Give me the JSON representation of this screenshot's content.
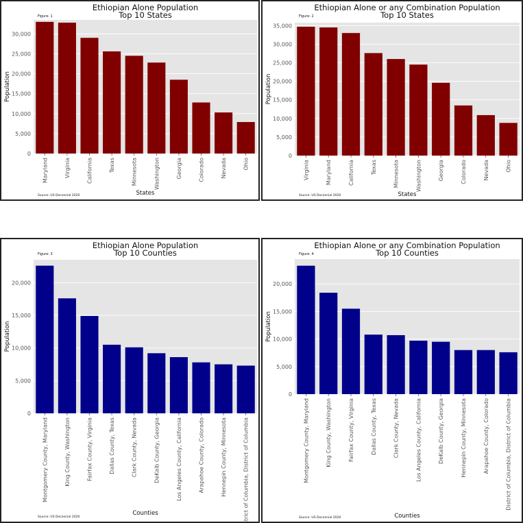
{
  "source_note": "Source: US Decennial 2020",
  "chart_data": [
    {
      "type": "bar",
      "figure_label": "Figure: 1",
      "title": "Ethiopian Alone Population",
      "subtitle": "Top 10 States",
      "xlabel": "States",
      "ylabel": "Population",
      "ylim": [
        0,
        33500
      ],
      "yticks": [
        0,
        5000,
        10000,
        15000,
        20000,
        25000,
        30000
      ],
      "ytick_labels": [
        "0",
        "5,000",
        "10,000",
        "15,000",
        "20,000",
        "25,000",
        "30,000"
      ],
      "categories": [
        "Maryland",
        "Virginia",
        "California",
        "Texas",
        "Minnesota",
        "Washington",
        "Georgia",
        "Colorado",
        "Nevada",
        "Ohio"
      ],
      "values": [
        33000,
        32800,
        29000,
        25600,
        24500,
        22800,
        18500,
        12800,
        10300,
        7900
      ],
      "color": "#800000"
    },
    {
      "type": "bar",
      "figure_label": "Figure: 2",
      "title": "Ethiopian Alone or any Combination Population",
      "subtitle": "Top 10 States",
      "xlabel": "States",
      "ylabel": "Population",
      "ylim": [
        0,
        35800
      ],
      "yticks": [
        0,
        5000,
        10000,
        15000,
        20000,
        25000,
        30000,
        35000
      ],
      "ytick_labels": [
        "0",
        "5,000",
        "10,000",
        "15,000",
        "20,000",
        "25,000",
        "30,000",
        "35,000"
      ],
      "categories": [
        "Virginia",
        "Maryland",
        "California",
        "Texas",
        "Minnesota",
        "Washington",
        "Georgia",
        "Colorado",
        "Nevada",
        "Ohio"
      ],
      "values": [
        34700,
        34500,
        33000,
        27600,
        26000,
        24500,
        19600,
        13500,
        10900,
        8800
      ],
      "color": "#800000"
    },
    {
      "type": "bar",
      "figure_label": "Figure: 3",
      "title": "Ethiopian Alone Population",
      "subtitle": "Top 10 Counties",
      "xlabel": "Counties",
      "ylabel": "Population",
      "ylim": [
        0,
        23500
      ],
      "yticks": [
        0,
        5000,
        10000,
        15000,
        20000
      ],
      "ytick_labels": [
        "0",
        "5,000",
        "10,000",
        "15,000",
        "20,000"
      ],
      "categories": [
        "Montgomery County, Maryland",
        "King County, Washington",
        "Fairfax County, Virginia",
        "Dallas County, Texas",
        "Clark County, Nevada",
        "DeKalb County, Georgia",
        "Los Angeles County, California",
        "Arapahoe County, Colorado",
        "Hennepin County, Minnesota",
        "District of Columbia, District of Columbia"
      ],
      "values": [
        22600,
        17600,
        14900,
        10500,
        10100,
        9200,
        8600,
        7800,
        7500,
        7300
      ],
      "color": "#00008b"
    },
    {
      "type": "bar",
      "figure_label": "Figure: 4",
      "title": "Ethiopian Alone or any Combination Population",
      "subtitle": "Top 10 Counties",
      "xlabel": "Counties",
      "ylabel": "Population",
      "ylim": [
        0,
        24500
      ],
      "yticks": [
        0,
        5000,
        10000,
        15000,
        20000
      ],
      "ytick_labels": [
        "0",
        "5,000",
        "10,000",
        "15,000",
        "20,000"
      ],
      "categories": [
        "Montgomery County, Maryland",
        "King County, Washington",
        "Fairfax County, Virginia",
        "Dallas County, Texas",
        "Clark County, Nevada",
        "Los Angeles County, California",
        "DeKalb County, Georgia",
        "Hennepin County, Minnesota",
        "Arapahoe County, Colorado",
        "District of Columbia, District of Columbia"
      ],
      "values": [
        23300,
        18400,
        15500,
        10800,
        10700,
        9700,
        9500,
        8000,
        8000,
        7600
      ],
      "color": "#00008b"
    }
  ]
}
